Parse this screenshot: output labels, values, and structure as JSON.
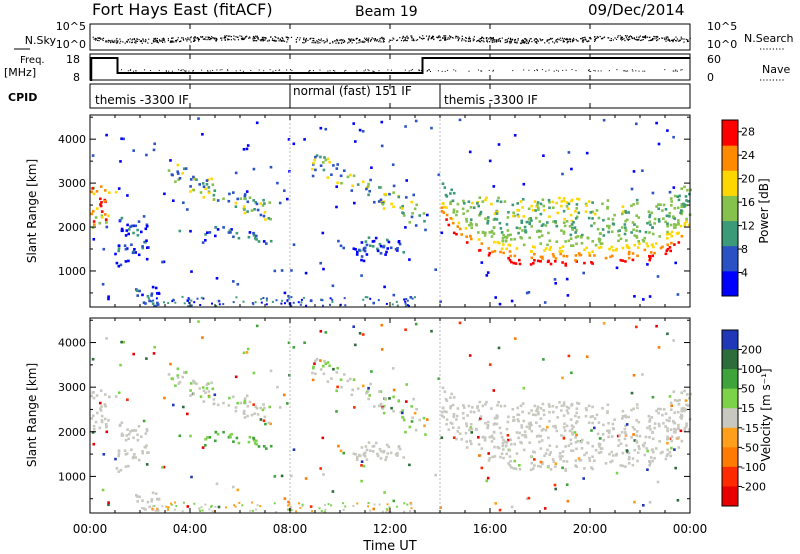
{
  "header": {
    "station": "Fort Hays East (fitACF)",
    "beam": "Beam 19",
    "date": "09/Dec/2014"
  },
  "noise_panel": {
    "left_label": "N.Sky",
    "right_label": "N.Search",
    "left_ticks": [
      "10^5",
      "10^0"
    ],
    "right_ticks": [
      "10^5",
      "10^0"
    ]
  },
  "freq_panel": {
    "left_label_top": "Freq.",
    "left_label_bottom": "[MHz]",
    "right_label": "Nave",
    "left_ticks": [
      "18",
      "8"
    ],
    "right_ticks": [
      "60",
      "0"
    ]
  },
  "cpid": {
    "label": "CPID",
    "segments": [
      {
        "start": 0,
        "end": 8,
        "text": "themis -3300 IF"
      },
      {
        "start": 8,
        "end": 14,
        "text": "normal (fast) 151 IF"
      },
      {
        "start": 14,
        "end": 24,
        "text": "themis -3300 IF"
      }
    ]
  },
  "chart_data": [
    {
      "type": "heatmap",
      "name": "power-panel",
      "ylabel": "Slant Range [km]",
      "xlabel": "Time UT",
      "xlim": [
        0,
        24
      ],
      "ylim": [
        180,
        4550
      ],
      "yticks": [
        "1000",
        "2000",
        "3000",
        "4000"
      ],
      "xticks": [
        "00:00",
        "04:00",
        "08:00",
        "12:00",
        "16:00",
        "20:00",
        "00:00"
      ],
      "colorbar": {
        "label": "Power [dB]",
        "ticks": [
          "4",
          "8",
          "12",
          "16",
          "20",
          "24",
          "28"
        ],
        "range": [
          0,
          30
        ],
        "colors": [
          "#0000ff",
          "#2a52c4",
          "#3d9a78",
          "#86c14d",
          "#ffd700",
          "#ff8a00",
          "#ff0000"
        ]
      },
      "echo_regions": [
        {
          "t0": 0,
          "t1": 1.1,
          "r_top": 2900,
          "r_bot": 2100,
          "level": "high"
        },
        {
          "t0": 1.0,
          "t1": 2.2,
          "r_top": 2300,
          "r_bot": 1100,
          "level": "low"
        },
        {
          "t0": 3.0,
          "t1": 6.5,
          "r_top": 3200,
          "r_bot": 2400,
          "level": "mid"
        },
        {
          "t0": 3.5,
          "t1": 7.0,
          "r_top": 2100,
          "r_bot": 1800,
          "level": "low"
        },
        {
          "t0": 9.0,
          "t1": 13.3,
          "r_top": 3600,
          "r_bot": 2000,
          "level": "mid"
        },
        {
          "t0": 10.5,
          "t1": 12.5,
          "r_top": 1800,
          "r_bot": 1400,
          "level": "low"
        },
        {
          "t0": 14.0,
          "t1": 24.0,
          "r_top": 2600,
          "r_bot": 1100,
          "level": "high"
        }
      ]
    },
    {
      "type": "heatmap",
      "name": "velocity-panel",
      "ylabel": "Slant Range [km]",
      "xlabel": "Time UT",
      "xlim": [
        0,
        24
      ],
      "ylim": [
        180,
        4550
      ],
      "yticks": [
        "1000",
        "2000",
        "3000",
        "4000"
      ],
      "xticks": [
        "00:00",
        "04:00",
        "08:00",
        "12:00",
        "16:00",
        "20:00",
        "00:00"
      ],
      "colorbar": {
        "label": "Velocity [m s⁻¹]",
        "ticks": [
          "200",
          "100",
          "50",
          "15",
          "-15",
          "-50",
          "-100",
          "-200"
        ],
        "colors": [
          "#2038b8",
          "#2c6d3a",
          "#3fa33b",
          "#7cd34a",
          "#c8c8c0",
          "#ff9f1a",
          "#ff7a00",
          "#ff2a00",
          "#e80000"
        ]
      }
    }
  ],
  "xaxis_title": "Time UT"
}
